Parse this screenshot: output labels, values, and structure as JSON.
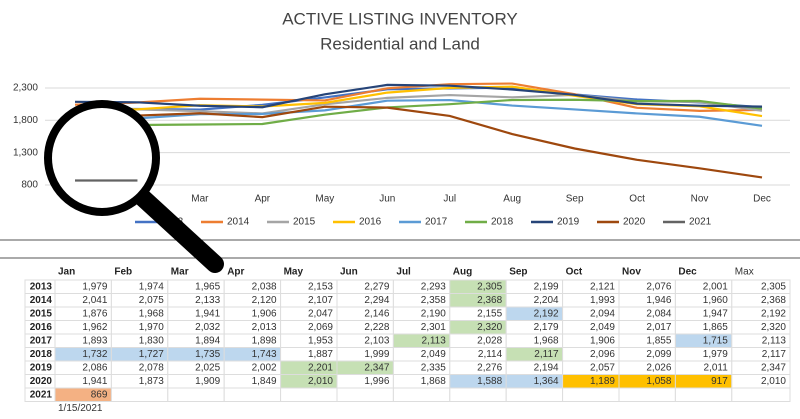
{
  "chart_data": {
    "type": "line",
    "title": "ACTIVE LISTING INVENTORY",
    "subtitle": "Residential and Land",
    "categories": [
      "Jan",
      "Feb",
      "Mar",
      "Apr",
      "May",
      "Jun",
      "Jul",
      "Aug",
      "Sep",
      "Oct",
      "Nov",
      "Dec"
    ],
    "ylim": [
      800,
      2500
    ],
    "yticks": [
      {
        "value": 800,
        "label": "800"
      },
      {
        "value": 1300,
        "label": "1,300"
      },
      {
        "value": 1800,
        "label": "1,800"
      },
      {
        "value": 2300,
        "label": "2,300"
      }
    ],
    "grid": true,
    "legend": "bottom",
    "series": [
      {
        "name": "2013",
        "color": "#4472c4",
        "values": [
          1979,
          1974,
          1965,
          2038,
          2153,
          2279,
          2293,
          2305,
          2199,
          2121,
          2076,
          2001
        ],
        "value_labels": [
          "1,979",
          "1,974",
          "1,965",
          "2,038",
          "2,153",
          "2,279",
          "2,293",
          "2,305",
          "2,199",
          "2,121",
          "2,076",
          "2,001"
        ]
      },
      {
        "name": "2014",
        "color": "#ed7d31",
        "values": [
          2041,
          2075,
          2133,
          2120,
          2107,
          2294,
          2358,
          2368,
          2204,
          1993,
          1946,
          1960
        ],
        "value_labels": [
          "2,041",
          "2,075",
          "2,133",
          "2,120",
          "2,107",
          "2,294",
          "2,358",
          "2,368",
          "2,204",
          "1,993",
          "1,946",
          "1,960"
        ]
      },
      {
        "name": "2015",
        "color": "#a5a5a5",
        "values": [
          1876,
          1968,
          1941,
          1906,
          2047,
          2146,
          2190,
          2155,
          2192,
          2094,
          2084,
          1947
        ],
        "value_labels": [
          "1,876",
          "1,968",
          "1,941",
          "1,906",
          "2,047",
          "2,146",
          "2,190",
          "2,155",
          "2,192",
          "2,094",
          "2,084",
          "1,947"
        ]
      },
      {
        "name": "2016",
        "color": "#ffc000",
        "values": [
          1962,
          1970,
          2032,
          2013,
          2069,
          2228,
          2301,
          2320,
          2179,
          2049,
          2017,
          1865
        ],
        "value_labels": [
          "1,962",
          "1,970",
          "2,032",
          "2,013",
          "2,069",
          "2,228",
          "2,301",
          "2,320",
          "2,179",
          "2,049",
          "2,017",
          "1,865"
        ]
      },
      {
        "name": "2017",
        "color": "#5b9bd5",
        "values": [
          1893,
          1830,
          1894,
          1898,
          1953,
          2103,
          2113,
          2028,
          1968,
          1906,
          1855,
          1715
        ],
        "value_labels": [
          "1,893",
          "1,830",
          "1,894",
          "1,898",
          "1,953",
          "2,103",
          "2,113",
          "2,028",
          "1,968",
          "1,906",
          "1,855",
          "1,715"
        ]
      },
      {
        "name": "2018",
        "color": "#70ad47",
        "values": [
          1732,
          1727,
          1735,
          1743,
          1887,
          1999,
          2049,
          2114,
          2117,
          2096,
          2099,
          1979
        ],
        "value_labels": [
          "1,732",
          "1,727",
          "1,735",
          "1,743",
          "1,887",
          "1,999",
          "2,049",
          "2,114",
          "2,117",
          "2,096",
          "2,099",
          "1,979"
        ]
      },
      {
        "name": "2019",
        "color": "#264478",
        "values": [
          2086,
          2078,
          2025,
          2002,
          2201,
          2347,
          2335,
          2276,
          2194,
          2057,
          2026,
          2011
        ],
        "value_labels": [
          "2,086",
          "2,078",
          "2,025",
          "2,002",
          "2,201",
          "2,347",
          "2,335",
          "2,276",
          "2,194",
          "2,057",
          "2,026",
          "2,011"
        ]
      },
      {
        "name": "2020",
        "color": "#9e480e",
        "values": [
          1941,
          1873,
          1909,
          1849,
          2010,
          1996,
          1868,
          1588,
          1364,
          1189,
          1058,
          917
        ],
        "value_labels": [
          "1,941",
          "1,873",
          "1,909",
          "1,849",
          "2,010",
          "1,996",
          "1,868",
          "1,588",
          "1,364",
          "1,189",
          "1,058",
          "917"
        ]
      },
      {
        "name": "2021",
        "color": "#636363",
        "values": [
          869,
          null,
          null,
          null,
          null,
          null,
          null,
          null,
          null,
          null,
          null,
          null
        ],
        "value_labels": [
          "869",
          null,
          null,
          null,
          null,
          null,
          null,
          null,
          null,
          null,
          null,
          null
        ]
      }
    ]
  },
  "table": {
    "max_header": "Max",
    "max": [
      "2,305",
      "2,368",
      "2,192",
      "2,320",
      "2,113",
      "2,117",
      "2,347",
      "2,010"
    ],
    "note": "1/15/2021"
  }
}
